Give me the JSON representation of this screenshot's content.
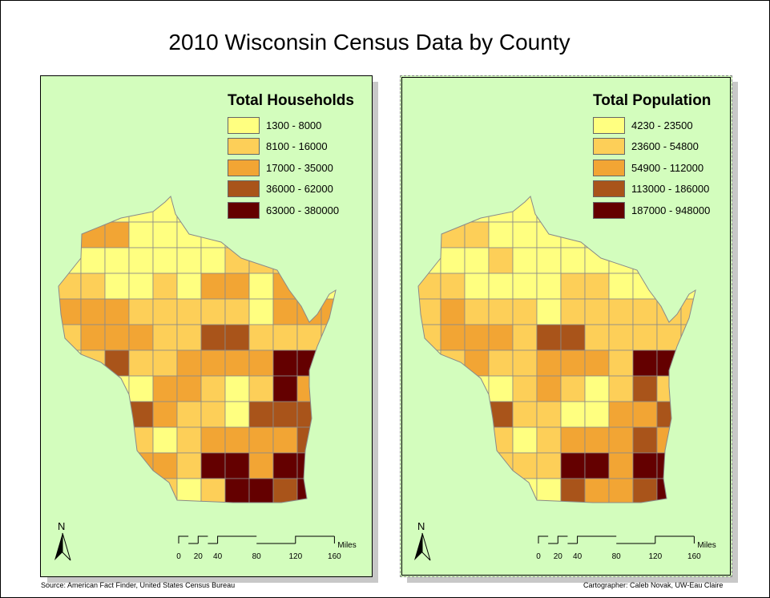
{
  "title": "2010 Wisconsin Census Data by County",
  "background_color": "#d3fdbd",
  "class_colors": [
    "#ffff80",
    "#fdcf58",
    "#f2a534",
    "#a9541a",
    "#640000"
  ],
  "maps": [
    {
      "legend_title": "Total Households",
      "classes": [
        "1300 - 8000",
        "8100 - 16000",
        "17000 - 35000",
        "36000 - 62000",
        "63000 - 380000"
      ],
      "county_classes": [
        [
          0,
          0,
          0,
          0,
          0,
          0,
          0,
          0,
          0,
          0,
          0,
          0
        ],
        [
          0,
          2,
          2,
          0,
          0,
          0,
          0,
          0,
          1,
          0,
          0,
          0
        ],
        [
          0,
          0,
          0,
          0,
          0,
          0,
          0,
          1,
          1,
          1,
          0,
          0
        ],
        [
          1,
          1,
          0,
          0,
          1,
          0,
          2,
          2,
          0,
          2,
          0,
          0
        ],
        [
          2,
          2,
          2,
          1,
          1,
          1,
          1,
          1,
          0,
          2,
          2,
          2
        ],
        [
          1,
          2,
          2,
          2,
          1,
          1,
          3,
          3,
          1,
          1,
          1,
          1
        ],
        [
          0,
          1,
          3,
          1,
          1,
          2,
          2,
          2,
          2,
          4,
          4,
          1
        ],
        [
          0,
          0,
          0,
          0,
          2,
          2,
          1,
          0,
          1,
          4,
          2,
          1
        ],
        [
          0,
          0,
          0,
          3,
          2,
          1,
          1,
          0,
          3,
          3,
          3,
          3
        ],
        [
          0,
          0,
          0,
          1,
          0,
          1,
          2,
          2,
          2,
          2,
          3,
          2
        ],
        [
          0,
          0,
          0,
          2,
          2,
          1,
          4,
          4,
          2,
          4,
          4,
          4
        ],
        [
          0,
          0,
          0,
          0,
          1,
          0,
          1,
          4,
          4,
          3,
          4,
          4
        ]
      ]
    },
    {
      "legend_title": "Total Population",
      "classes": [
        "4230 - 23500",
        "23600 - 54800",
        "54900 - 112000",
        "113000 - 186000",
        "187000 - 948000"
      ],
      "county_classes": [
        [
          0,
          0,
          0,
          0,
          0,
          0,
          0,
          0,
          0,
          0,
          0,
          0
        ],
        [
          0,
          1,
          1,
          0,
          0,
          0,
          0,
          0,
          0,
          0,
          0,
          0
        ],
        [
          0,
          0,
          0,
          1,
          0,
          0,
          0,
          0,
          0,
          0,
          0,
          0
        ],
        [
          1,
          1,
          0,
          0,
          0,
          0,
          1,
          1,
          0,
          0,
          0,
          0
        ],
        [
          1,
          2,
          1,
          1,
          1,
          0,
          1,
          1,
          1,
          1,
          1,
          1
        ],
        [
          1,
          2,
          2,
          2,
          1,
          3,
          3,
          1,
          1,
          1,
          1,
          1
        ],
        [
          0,
          1,
          2,
          1,
          1,
          2,
          2,
          2,
          1,
          4,
          4,
          1
        ],
        [
          0,
          0,
          0,
          0,
          1,
          2,
          1,
          0,
          1,
          3,
          1,
          1
        ],
        [
          0,
          0,
          0,
          3,
          1,
          1,
          0,
          0,
          2,
          2,
          3,
          3
        ],
        [
          0,
          0,
          0,
          1,
          0,
          1,
          2,
          2,
          2,
          3,
          2,
          2
        ],
        [
          0,
          0,
          0,
          1,
          1,
          1,
          4,
          4,
          2,
          4,
          4,
          4
        ],
        [
          0,
          0,
          0,
          0,
          0,
          0,
          3,
          2,
          2,
          3,
          4,
          4
        ]
      ]
    }
  ],
  "north_arrow_label": "N",
  "scale": {
    "ticks": [
      "0",
      "20",
      "40",
      "80",
      "120",
      "160"
    ],
    "unit": "Miles"
  },
  "source": "Source: American Fact Finder, United States Census Bureau",
  "cartographer": "Cartographer: Caleb Novak, UW-Eau Claire"
}
